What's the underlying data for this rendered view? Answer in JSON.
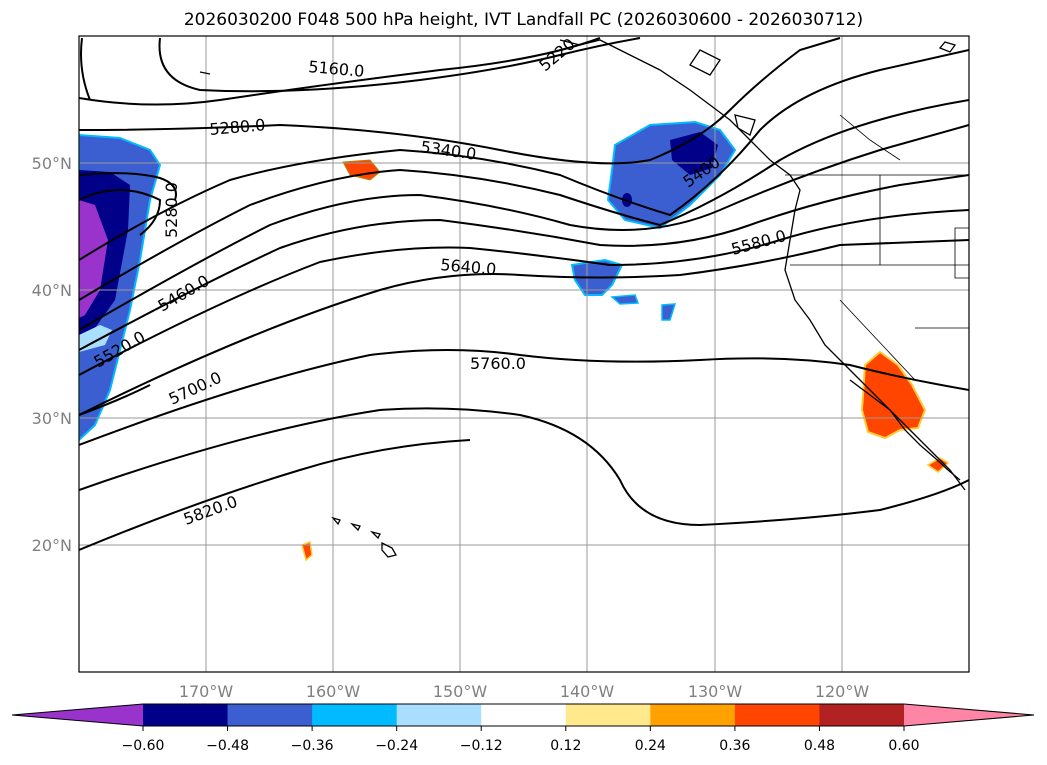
{
  "title": "2026030200 F048 500 hPa height, IVT Landfall PC (2026030600 - 2026030712)",
  "lat_labels": [
    "50°N",
    "40°N",
    "30°N",
    "20°N"
  ],
  "lon_labels": [
    "170°W",
    "160°W",
    "150°W",
    "140°W",
    "130°W",
    "120°W"
  ],
  "contour_labels": [
    "5160.0",
    "5220",
    "5280.0",
    "5340.0",
    "5400",
    "5280.0",
    "5460.0",
    "5580.0",
    "5640.0",
    "5520.0",
    "5760.0",
    "5700.0",
    "5820.0"
  ],
  "colorbar": {
    "ticks": [
      "−0.60",
      "−0.48",
      "−0.36",
      "−0.24",
      "−0.12",
      "0.12",
      "0.24",
      "0.36",
      "0.48",
      "0.60"
    ],
    "colors": [
      "#9933cc",
      "#000088",
      "#3b5fd1",
      "#00bbff",
      "#aadeff",
      "#ffffff",
      "#ffe98c",
      "#ffa200",
      "#ff4500",
      "#b22222",
      "#ff85a7"
    ]
  },
  "colors": {
    "shading_strong_negative": "#000088",
    "shading_negative": "#3b5fd1",
    "shading_extreme_negative": "#9933cc",
    "shading_positive": "#ff4500",
    "contour": "#000000",
    "grid": "#999999"
  }
}
